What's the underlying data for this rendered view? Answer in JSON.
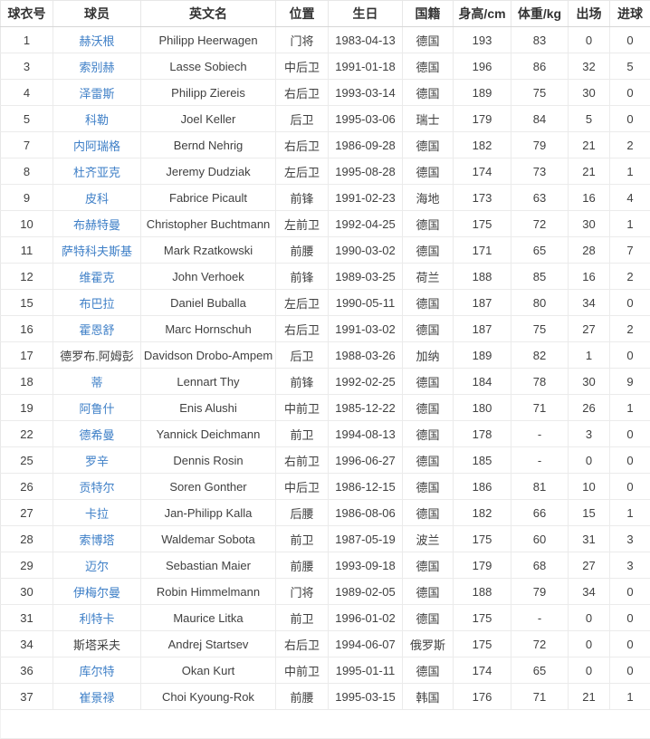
{
  "table": {
    "colors": {
      "link_blue": "#3e7fc7",
      "header_text": "#333333",
      "body_text": "#404040",
      "row_border": "#ebebeb",
      "header_border": "#d6d6d6",
      "background": "#ffffff"
    },
    "columns": [
      {
        "key": "number",
        "label": "球衣号"
      },
      {
        "key": "name",
        "label": "球员"
      },
      {
        "key": "en_name",
        "label": "英文名"
      },
      {
        "key": "position",
        "label": "位置"
      },
      {
        "key": "birthday",
        "label": "生日"
      },
      {
        "key": "nation",
        "label": "国籍"
      },
      {
        "key": "height",
        "label": "身高/cm"
      },
      {
        "key": "weight",
        "label": "体重/kg"
      },
      {
        "key": "apps",
        "label": "出场"
      },
      {
        "key": "goals",
        "label": "进球"
      }
    ],
    "rows": [
      {
        "number": "1",
        "name": "赫沃根",
        "link": true,
        "en_name": "Philipp Heerwagen",
        "position": "门将",
        "birthday": "1983-04-13",
        "nation": "德国",
        "height": "193",
        "weight": "83",
        "apps": "0",
        "goals": "0"
      },
      {
        "number": "3",
        "name": "索别赫",
        "link": true,
        "en_name": "Lasse Sobiech",
        "position": "中后卫",
        "birthday": "1991-01-18",
        "nation": "德国",
        "height": "196",
        "weight": "86",
        "apps": "32",
        "goals": "5"
      },
      {
        "number": "4",
        "name": "泽雷斯",
        "link": true,
        "en_name": "Philipp Ziereis",
        "position": "右后卫",
        "birthday": "1993-03-14",
        "nation": "德国",
        "height": "189",
        "weight": "75",
        "apps": "30",
        "goals": "0"
      },
      {
        "number": "5",
        "name": "科勒",
        "link": true,
        "en_name": "Joel Keller",
        "position": "后卫",
        "birthday": "1995-03-06",
        "nation": "瑞士",
        "height": "179",
        "weight": "84",
        "apps": "5",
        "goals": "0"
      },
      {
        "number": "7",
        "name": "内阿瑞格",
        "link": true,
        "en_name": "Bernd Nehrig",
        "position": "右后卫",
        "birthday": "1986-09-28",
        "nation": "德国",
        "height": "182",
        "weight": "79",
        "apps": "21",
        "goals": "2"
      },
      {
        "number": "8",
        "name": "杜齐亚克",
        "link": true,
        "en_name": "Jeremy Dudziak",
        "position": "左后卫",
        "birthday": "1995-08-28",
        "nation": "德国",
        "height": "174",
        "weight": "73",
        "apps": "21",
        "goals": "1"
      },
      {
        "number": "9",
        "name": "皮科",
        "link": true,
        "en_name": "Fabrice Picault",
        "position": "前锋",
        "birthday": "1991-02-23",
        "nation": "海地",
        "height": "173",
        "weight": "63",
        "apps": "16",
        "goals": "4"
      },
      {
        "number": "10",
        "name": "布赫特曼",
        "link": true,
        "en_name": "Christopher Buchtmann",
        "position": "左前卫",
        "birthday": "1992-04-25",
        "nation": "德国",
        "height": "175",
        "weight": "72",
        "apps": "30",
        "goals": "1"
      },
      {
        "number": "11",
        "name": "萨特科夫斯基",
        "link": true,
        "en_name": "Mark Rzatkowski",
        "position": "前腰",
        "birthday": "1990-03-02",
        "nation": "德国",
        "height": "171",
        "weight": "65",
        "apps": "28",
        "goals": "7"
      },
      {
        "number": "12",
        "name": "维霍克",
        "link": true,
        "en_name": "John Verhoek",
        "position": "前锋",
        "birthday": "1989-03-25",
        "nation": "荷兰",
        "height": "188",
        "weight": "85",
        "apps": "16",
        "goals": "2"
      },
      {
        "number": "15",
        "name": "布巴拉",
        "link": true,
        "en_name": "Daniel Buballa",
        "position": "左后卫",
        "birthday": "1990-05-11",
        "nation": "德国",
        "height": "187",
        "weight": "80",
        "apps": "34",
        "goals": "0"
      },
      {
        "number": "16",
        "name": "霍恩舒",
        "link": true,
        "en_name": "Marc Hornschuh",
        "position": "右后卫",
        "birthday": "1991-03-02",
        "nation": "德国",
        "height": "187",
        "weight": "75",
        "apps": "27",
        "goals": "2"
      },
      {
        "number": "17",
        "name": "德罗布.阿姆彭",
        "link": false,
        "en_name": "Davidson Drobo-Ampem",
        "position": "后卫",
        "birthday": "1988-03-26",
        "nation": "加纳",
        "height": "189",
        "weight": "82",
        "apps": "1",
        "goals": "0"
      },
      {
        "number": "18",
        "name": "蒂",
        "link": true,
        "en_name": "Lennart Thy",
        "position": "前锋",
        "birthday": "1992-02-25",
        "nation": "德国",
        "height": "184",
        "weight": "78",
        "apps": "30",
        "goals": "9"
      },
      {
        "number": "19",
        "name": "阿鲁什",
        "link": true,
        "en_name": "Enis Alushi",
        "position": "中前卫",
        "birthday": "1985-12-22",
        "nation": "德国",
        "height": "180",
        "weight": "71",
        "apps": "26",
        "goals": "1"
      },
      {
        "number": "22",
        "name": "德希曼",
        "link": true,
        "en_name": "Yannick Deichmann",
        "position": "前卫",
        "birthday": "1994-08-13",
        "nation": "德国",
        "height": "178",
        "weight": "-",
        "apps": "3",
        "goals": "0"
      },
      {
        "number": "25",
        "name": "罗辛",
        "link": true,
        "en_name": "Dennis Rosin",
        "position": "右前卫",
        "birthday": "1996-06-27",
        "nation": "德国",
        "height": "185",
        "weight": "-",
        "apps": "0",
        "goals": "0"
      },
      {
        "number": "26",
        "name": "贡特尔",
        "link": true,
        "en_name": "Soren Gonther",
        "position": "中后卫",
        "birthday": "1986-12-15",
        "nation": "德国",
        "height": "186",
        "weight": "81",
        "apps": "10",
        "goals": "0"
      },
      {
        "number": "27",
        "name": "卡拉",
        "link": true,
        "en_name": "Jan-Philipp Kalla",
        "position": "后腰",
        "birthday": "1986-08-06",
        "nation": "德国",
        "height": "182",
        "weight": "66",
        "apps": "15",
        "goals": "1"
      },
      {
        "number": "28",
        "name": "索博塔",
        "link": true,
        "en_name": "Waldemar Sobota",
        "position": "前卫",
        "birthday": "1987-05-19",
        "nation": "波兰",
        "height": "175",
        "weight": "60",
        "apps": "31",
        "goals": "3"
      },
      {
        "number": "29",
        "name": "迈尔",
        "link": true,
        "en_name": "Sebastian Maier",
        "position": "前腰",
        "birthday": "1993-09-18",
        "nation": "德国",
        "height": "179",
        "weight": "68",
        "apps": "27",
        "goals": "3"
      },
      {
        "number": "30",
        "name": "伊梅尔曼",
        "link": true,
        "en_name": "Robin Himmelmann",
        "position": "门将",
        "birthday": "1989-02-05",
        "nation": "德国",
        "height": "188",
        "weight": "79",
        "apps": "34",
        "goals": "0"
      },
      {
        "number": "31",
        "name": "利特卡",
        "link": true,
        "en_name": "Maurice Litka",
        "position": "前卫",
        "birthday": "1996-01-02",
        "nation": "德国",
        "height": "175",
        "weight": "-",
        "apps": "0",
        "goals": "0"
      },
      {
        "number": "34",
        "name": "斯塔采夫",
        "link": false,
        "en_name": "Andrej Startsev",
        "position": "右后卫",
        "birthday": "1994-06-07",
        "nation": "俄罗斯",
        "height": "175",
        "weight": "72",
        "apps": "0",
        "goals": "0"
      },
      {
        "number": "36",
        "name": "库尔特",
        "link": true,
        "en_name": "Okan Kurt",
        "position": "中前卫",
        "birthday": "1995-01-11",
        "nation": "德国",
        "height": "174",
        "weight": "65",
        "apps": "0",
        "goals": "0"
      },
      {
        "number": "37",
        "name": "崔景禄",
        "link": true,
        "en_name": "Choi Kyoung-Rok",
        "position": "前腰",
        "birthday": "1995-03-15",
        "nation": "韩国",
        "height": "176",
        "weight": "71",
        "apps": "21",
        "goals": "1"
      }
    ]
  }
}
